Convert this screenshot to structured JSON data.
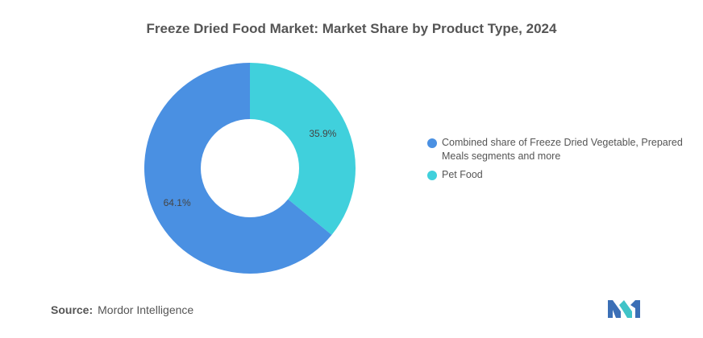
{
  "chart_data": {
    "type": "pie",
    "title": "Freeze Dried Food Market: Market Share by Product Type, 2024",
    "donut": true,
    "slices": [
      {
        "name": "Combined share of Freeze Dried Vegetable, Prepared Meals segments and more",
        "value": 64.1,
        "label": "64.1%",
        "color": "#4a90e2"
      },
      {
        "name": "Pet Food",
        "value": 35.9,
        "label": "35.9%",
        "color": "#40d0dc"
      }
    ],
    "legend_placement": "right"
  },
  "source": {
    "label": "Source:",
    "text": "Mordor Intelligence"
  },
  "logo": {
    "icon": "mordor-intelligence-logo",
    "colors": [
      "#3b6fb6",
      "#40c4c8"
    ]
  }
}
